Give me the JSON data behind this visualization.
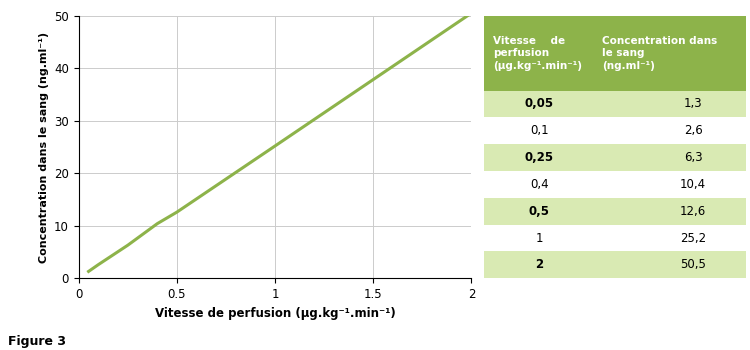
{
  "x_data": [
    0.05,
    0.1,
    0.25,
    0.4,
    0.5,
    1.0,
    2.0
  ],
  "y_data": [
    1.3,
    2.6,
    6.3,
    10.4,
    12.6,
    25.2,
    50.5
  ],
  "line_color": "#8db34a",
  "xlabel": "Vitesse de perfusion (μg.kg⁻¹.min⁻¹)",
  "ylabel": "Concentration dans le sang (ng.ml⁻¹)",
  "xlim": [
    0,
    2
  ],
  "ylim": [
    0,
    50
  ],
  "xticks": [
    0,
    0.5,
    1.0,
    1.5,
    2.0
  ],
  "yticks": [
    0,
    10,
    20,
    30,
    40,
    50
  ],
  "figure_label": "Figure 3",
  "table_header_bg": "#8db34a",
  "table_row_bg_odd": "#d9eab3",
  "table_row_bg_even": "#ffffff",
  "table_header_col1": "Vitesse    de\nperfusion\n(μg.kg⁻¹.min⁻¹)",
  "table_header_col2": "Concentration dans\nle sang\n(ng.ml⁻¹)",
  "table_col1": [
    "0,05",
    "0,1",
    "0,25",
    "0,4",
    "0,5",
    "1",
    "2"
  ],
  "table_col2": [
    "1,3",
    "2,6",
    "6,3",
    "10,4",
    "12,6",
    "25,2",
    "50,5"
  ],
  "table_bold_rows": [
    0,
    2,
    4,
    6
  ],
  "grid_color": "#cccccc",
  "bg_color": "#ffffff"
}
